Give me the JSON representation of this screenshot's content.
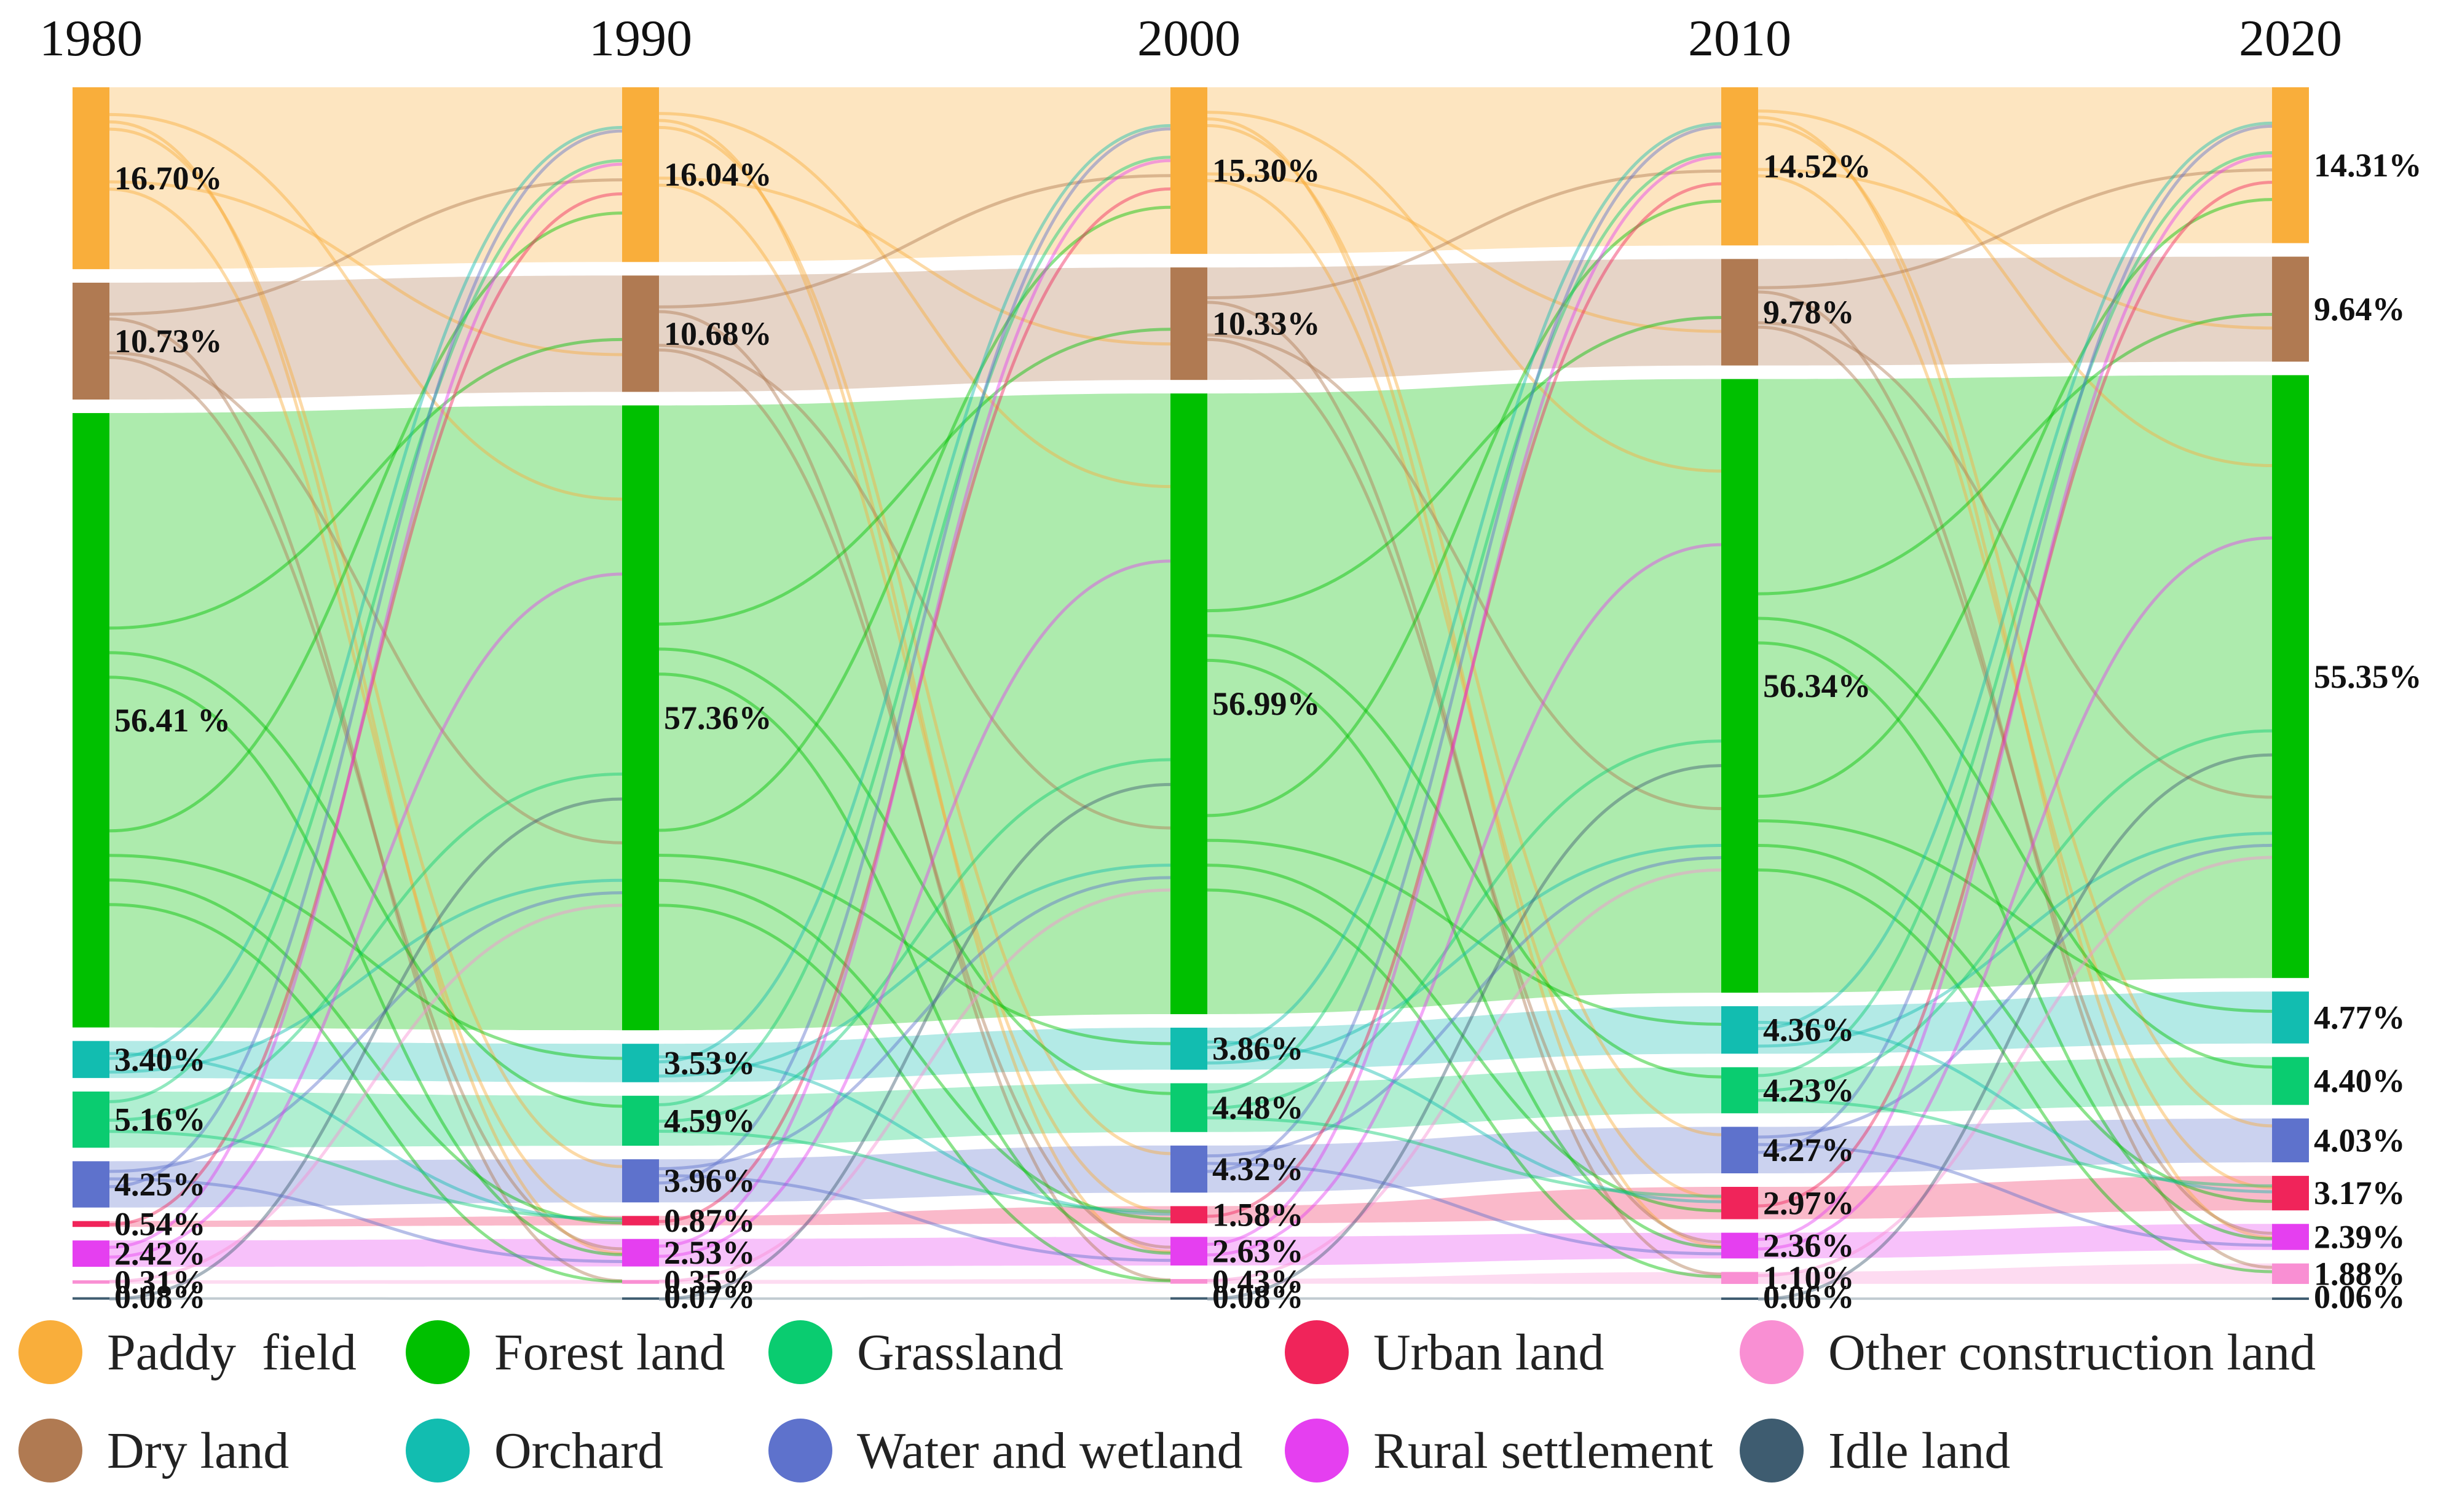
{
  "chart_data": {
    "type": "sankey",
    "years": [
      "1980",
      "1990",
      "2000",
      "2010",
      "2020"
    ],
    "categories": [
      {
        "key": "paddy",
        "name": "Paddy  field",
        "color": "#F9AE3B"
      },
      {
        "key": "dry",
        "name": "Dry land",
        "color": "#B07A52"
      },
      {
        "key": "forest",
        "name": "Forest land",
        "color": "#00C000"
      },
      {
        "key": "orchard",
        "name": "Orchard",
        "color": "#12BDB0"
      },
      {
        "key": "grass",
        "name": "Grassland",
        "color": "#0ACC70"
      },
      {
        "key": "water",
        "name": "Water and wetland",
        "color": "#5E72CC"
      },
      {
        "key": "urban",
        "name": "Urban land",
        "color": "#F0245A"
      },
      {
        "key": "rural",
        "name": "Rural settlement",
        "color": "#E53FF0"
      },
      {
        "key": "other",
        "name": "Other construction land",
        "color": "#F98FD3"
      },
      {
        "key": "idle",
        "name": "Idle land",
        "color": "#3E5C70"
      }
    ],
    "values": {
      "1980": [
        16.7,
        10.73,
        56.41,
        3.4,
        5.16,
        4.25,
        0.54,
        2.42,
        0.31,
        0.08
      ],
      "1990": [
        16.04,
        10.68,
        57.36,
        3.53,
        4.59,
        3.96,
        0.87,
        2.53,
        0.35,
        0.07
      ],
      "2000": [
        15.3,
        10.33,
        56.99,
        3.86,
        4.48,
        4.32,
        1.58,
        2.63,
        0.43,
        0.08
      ],
      "2010": [
        14.52,
        9.78,
        56.34,
        4.36,
        4.23,
        4.27,
        2.97,
        2.36,
        1.1,
        0.06
      ],
      "2020": [
        14.31,
        9.64,
        55.35,
        4.77,
        4.4,
        4.03,
        3.17,
        2.39,
        1.88,
        0.06
      ]
    },
    "labels": {
      "1980": [
        "16.70%",
        "10.73%",
        "56.41 %",
        "3.40%",
        "5.16%",
        "4.25%",
        "0.54%",
        "2.42%",
        "0.31%",
        "0.08%"
      ],
      "1990": [
        "16.04%",
        "10.68%",
        "57.36%",
        "3.53%",
        "4.59%",
        "3.96%",
        "0.87%",
        "2.53%",
        "0.35%",
        "0.07%"
      ],
      "2000": [
        "15.30%",
        "10.33%",
        "56.99%",
        "3.86%",
        "4.48%",
        "4.32%",
        "1.58%",
        "2.63%",
        "0.43%",
        "0.08%"
      ],
      "2010": [
        "14.52%",
        "9.78%",
        "56.34%",
        "4.36%",
        "4.23%",
        "4.27%",
        "2.97%",
        "2.36%",
        "1.10%",
        "0.06%"
      ],
      "2020": [
        "14.31%",
        "9.64%",
        "55.35%",
        "4.77%",
        "4.40%",
        "4.03%",
        "3.17%",
        "2.39%",
        "1.88%",
        "0.06%"
      ]
    },
    "unit": "%"
  },
  "legend": {
    "row1": [
      "Paddy  field",
      "Forest land",
      "Grassland",
      "Urban land",
      "Other construction land"
    ],
    "row2": [
      "Dry land",
      "Orchard",
      "Water and wetland",
      "Rural settlement",
      "Idle land"
    ]
  }
}
